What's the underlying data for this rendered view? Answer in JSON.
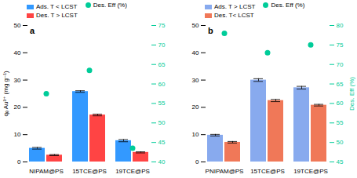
{
  "chart_data": [
    {
      "type": "bar",
      "title": "a",
      "categories": [
        "NIPAM@PS",
        "15TCE@PS",
        "19TCE@PS"
      ],
      "series": [
        {
          "name": "Ads. T < LCST",
          "color": "#3399FF",
          "values": [
            5.0,
            25.8,
            7.8
          ],
          "errors": [
            0.3,
            0.3,
            0.4
          ]
        },
        {
          "name": "Des. T > LCST",
          "color": "#FF4444",
          "values": [
            2.5,
            17.2,
            3.5
          ],
          "errors": [
            0.2,
            0.3,
            0.2
          ]
        },
        {
          "name": "Des. Eff (%)",
          "type": "scatter",
          "axis": "y2",
          "marker": "circle",
          "color": "#00CC99",
          "values": [
            57.5,
            63.5,
            43.5
          ]
        }
      ],
      "ylabel": "qₑ Au³⁺ (mg g⁻¹)",
      "ylim": [
        0,
        50
      ],
      "yticks": [
        0,
        10,
        20,
        30,
        40,
        50
      ],
      "y2lim": [
        40,
        75
      ],
      "y2ticks": [
        40,
        45,
        50,
        55,
        60,
        65,
        70,
        75
      ],
      "legend": "top"
    },
    {
      "type": "bar",
      "title": "b",
      "categories": [
        "PNIPAM@PS",
        "15TCE@PS",
        "19TCE@PS"
      ],
      "series": [
        {
          "name": "Ads. T > LCST",
          "color": "#88AAEE",
          "values": [
            9.8,
            30.0,
            27.2
          ],
          "errors": [
            0.3,
            0.5,
            0.5
          ]
        },
        {
          "name": "Des. T< LCST",
          "color": "#F07858",
          "values": [
            7.2,
            22.5,
            20.8
          ],
          "errors": [
            0.3,
            0.4,
            0.3
          ]
        },
        {
          "name": "Des. Eff (%)",
          "type": "scatter",
          "axis": "y2",
          "marker": "circle",
          "color": "#00CC99",
          "values": [
            78,
            73,
            75
          ]
        }
      ],
      "y2label": "Des. Eff (%)",
      "ylim": [
        0,
        50
      ],
      "yticks": [
        0,
        10,
        20,
        30,
        40,
        50
      ],
      "y2lim": [
        45,
        80
      ],
      "y2ticks": [
        45,
        50,
        55,
        60,
        65,
        70,
        75,
        80
      ],
      "legend": "top"
    }
  ]
}
